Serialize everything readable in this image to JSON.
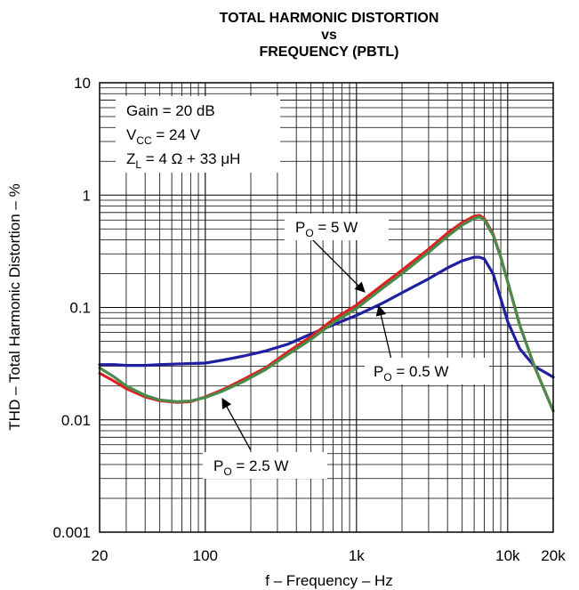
{
  "chart_data": {
    "type": "line",
    "title_lines": [
      "TOTAL HARMONIC DISTORTION",
      "vs",
      "FREQUENCY (PBTL)"
    ],
    "xlabel": "f – Frequency – Hz",
    "ylabel": "THD – Total Harmonic Distortion – %",
    "x_scale": "log",
    "y_scale": "log",
    "xlim": [
      20,
      20000
    ],
    "ylim": [
      0.001,
      10
    ],
    "x_ticks": [
      {
        "value": 20,
        "label": "20"
      },
      {
        "value": 100,
        "label": "100"
      },
      {
        "value": 1000,
        "label": "1k"
      },
      {
        "value": 10000,
        "label": "10k"
      },
      {
        "value": 20000,
        "label": "20k"
      }
    ],
    "y_ticks": [
      {
        "value": 10,
        "label": "10"
      },
      {
        "value": 1,
        "label": "1"
      },
      {
        "value": 0.1,
        "label": "0.1"
      },
      {
        "value": 0.01,
        "label": "0.01"
      },
      {
        "value": 0.001,
        "label": "0.001"
      }
    ],
    "grid": true,
    "conditions": {
      "gain": {
        "text": "Gain = 20 dB"
      },
      "vcc": {
        "main": "V",
        "sub": "CC",
        "rest": " = 24 V"
      },
      "zl": {
        "main": "Z",
        "sub": "L",
        "rest": " = 4 Ω + 33 μH"
      }
    },
    "series": [
      {
        "color": "#1f1fa0",
        "label": {
          "main": "P",
          "sub": "O",
          "rest": " = 0.5 W"
        },
        "points": [
          [
            20,
            0.031
          ],
          [
            25,
            0.031
          ],
          [
            30,
            0.0305
          ],
          [
            40,
            0.0305
          ],
          [
            50,
            0.031
          ],
          [
            70,
            0.0315
          ],
          [
            100,
            0.032
          ],
          [
            130,
            0.034
          ],
          [
            180,
            0.037
          ],
          [
            250,
            0.041
          ],
          [
            350,
            0.047
          ],
          [
            500,
            0.058
          ],
          [
            700,
            0.07
          ],
          [
            1000,
            0.085
          ],
          [
            1500,
            0.11
          ],
          [
            2000,
            0.135
          ],
          [
            3000,
            0.18
          ],
          [
            4000,
            0.225
          ],
          [
            5000,
            0.26
          ],
          [
            6000,
            0.28
          ],
          [
            6500,
            0.28
          ],
          [
            7000,
            0.27
          ],
          [
            8000,
            0.2
          ],
          [
            9000,
            0.12
          ],
          [
            10000,
            0.075
          ],
          [
            12000,
            0.043
          ],
          [
            15000,
            0.03
          ],
          [
            20000,
            0.024
          ]
        ]
      },
      {
        "color": "#e02020",
        "label": {
          "main": "P",
          "sub": "O",
          "rest": " = 5 W"
        },
        "points": [
          [
            20,
            0.026
          ],
          [
            25,
            0.022
          ],
          [
            30,
            0.019
          ],
          [
            40,
            0.016
          ],
          [
            50,
            0.0148
          ],
          [
            65,
            0.0143
          ],
          [
            80,
            0.0145
          ],
          [
            100,
            0.016
          ],
          [
            130,
            0.0185
          ],
          [
            180,
            0.023
          ],
          [
            250,
            0.029
          ],
          [
            350,
            0.04
          ],
          [
            500,
            0.055
          ],
          [
            700,
            0.078
          ],
          [
            1000,
            0.105
          ],
          [
            1500,
            0.16
          ],
          [
            2000,
            0.215
          ],
          [
            3000,
            0.33
          ],
          [
            4000,
            0.46
          ],
          [
            5000,
            0.57
          ],
          [
            6000,
            0.65
          ],
          [
            6500,
            0.66
          ],
          [
            7000,
            0.62
          ],
          [
            8000,
            0.45
          ],
          [
            9000,
            0.28
          ],
          [
            10000,
            0.17
          ],
          [
            12000,
            0.07
          ],
          [
            15000,
            0.03
          ],
          [
            20000,
            0.012
          ]
        ]
      },
      {
        "color": "#4a8a4a",
        "label": {
          "main": "P",
          "sub": "O",
          "rest": " = 2.5 W"
        },
        "points": [
          [
            20,
            0.029
          ],
          [
            25,
            0.024
          ],
          [
            30,
            0.02
          ],
          [
            40,
            0.0165
          ],
          [
            50,
            0.015
          ],
          [
            65,
            0.0145
          ],
          [
            80,
            0.0147
          ],
          [
            100,
            0.0158
          ],
          [
            130,
            0.018
          ],
          [
            180,
            0.022
          ],
          [
            250,
            0.028
          ],
          [
            350,
            0.038
          ],
          [
            500,
            0.052
          ],
          [
            700,
            0.073
          ],
          [
            1000,
            0.098
          ],
          [
            1500,
            0.15
          ],
          [
            2000,
            0.2
          ],
          [
            3000,
            0.31
          ],
          [
            4000,
            0.43
          ],
          [
            5000,
            0.54
          ],
          [
            6000,
            0.62
          ],
          [
            6500,
            0.64
          ],
          [
            7000,
            0.6
          ],
          [
            8000,
            0.44
          ],
          [
            9000,
            0.28
          ],
          [
            10000,
            0.17
          ],
          [
            12000,
            0.07
          ],
          [
            15000,
            0.03
          ],
          [
            20000,
            0.012
          ]
        ]
      }
    ]
  }
}
